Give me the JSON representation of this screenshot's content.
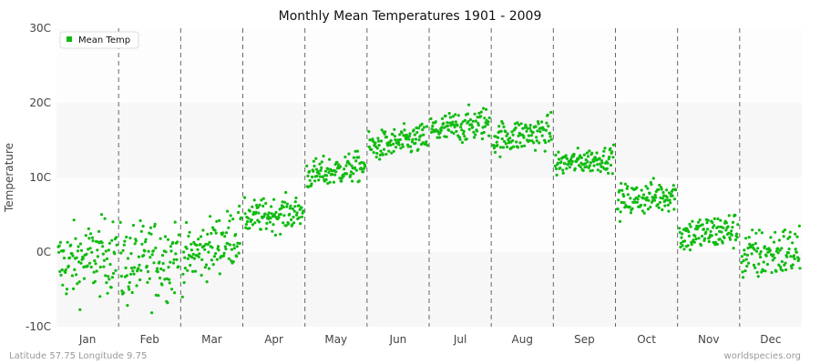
{
  "colors": {
    "series": "#11bb11",
    "band_light": "#f7f7f7",
    "band_white": "#fdfdfd",
    "divider": "#666666"
  },
  "footer": {
    "left": "Latitude 57.75 Longitude 9.75",
    "right": "worldspecies.org"
  },
  "chart_data": {
    "type": "scatter",
    "title": "Monthly Mean Temperatures 1901 - 2009",
    "xlabel": "",
    "ylabel": "Temperature",
    "ylim": [
      -10,
      30
    ],
    "yticks": [
      {
        "value": 30,
        "label": "30C"
      },
      {
        "value": 20,
        "label": "20C"
      },
      {
        "value": 10,
        "label": "10C"
      },
      {
        "value": 0,
        "label": "0C"
      },
      {
        "value": -10,
        "label": "-10C"
      }
    ],
    "categories": [
      "Jan",
      "Feb",
      "Mar",
      "Apr",
      "May",
      "Jun",
      "Jul",
      "Aug",
      "Sep",
      "Oct",
      "Nov",
      "Dec"
    ],
    "legend": {
      "position": "top-left",
      "entries": [
        "Mean Temp"
      ]
    },
    "years": [
      1901,
      2009
    ],
    "series": [
      {
        "name": "Mean Temp",
        "monthly_summary": [
          {
            "month": "Jan",
            "start": -1.8,
            "end": -0.2,
            "spread": 4.5
          },
          {
            "month": "Feb",
            "start": -2.0,
            "end": -0.5,
            "spread": 5.0
          },
          {
            "month": "Mar",
            "start": -1.0,
            "end": 2.5,
            "spread": 3.5
          },
          {
            "month": "Apr",
            "start": 4.6,
            "end": 5.4,
            "spread": 2.0
          },
          {
            "month": "May",
            "start": 10.2,
            "end": 11.6,
            "spread": 1.8
          },
          {
            "month": "Jun",
            "start": 14.0,
            "end": 15.3,
            "spread": 1.8
          },
          {
            "month": "Jul",
            "start": 16.2,
            "end": 17.4,
            "spread": 2.0
          },
          {
            "month": "Aug",
            "start": 15.2,
            "end": 16.2,
            "spread": 2.0
          },
          {
            "month": "Sep",
            "start": 11.8,
            "end": 12.6,
            "spread": 1.5
          },
          {
            "month": "Oct",
            "start": 6.8,
            "end": 7.8,
            "spread": 2.0
          },
          {
            "month": "Nov",
            "start": 2.2,
            "end": 3.0,
            "spread": 2.2
          },
          {
            "month": "Dec",
            "start": -0.6,
            "end": 0.2,
            "spread": 3.2
          }
        ]
      }
    ]
  }
}
